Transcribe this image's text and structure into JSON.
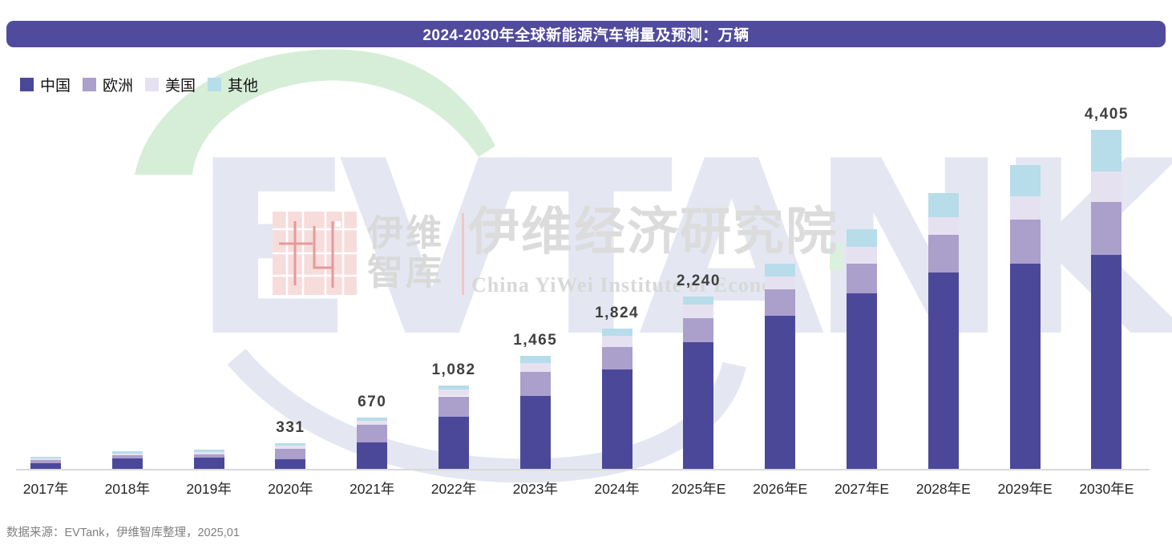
{
  "title": "2024-2030年全球新能源汽车销量及预测：万辆",
  "source_note": "数据来源：EVTank，伊维智库整理，2025,01",
  "colors": {
    "title_bar": "#514b9d",
    "china": "#4c4899",
    "europe": "#ab9fcc",
    "usa": "#e6e1f0",
    "other": "#b6dde9",
    "axis_line": "#d9d9d9",
    "value_label_text": "#3f3f3f",
    "source_text": "#7f7f7f",
    "watermark_green": "#d6eed8",
    "watermark_gray": "#dcdcdc",
    "watermark_blue_gray": "#e4e7f2",
    "logo_pink": "#f7dcdc",
    "logo_red": "#e59a9a"
  },
  "watermark": {
    "letters": "EVTANK",
    "logo_text": "伊维\n智库",
    "institute_cn": "伊维经济研究院",
    "institute_en": "China YiWei Institute of Econom"
  },
  "chart_data": {
    "type": "bar",
    "stacked": true,
    "unit": "万辆",
    "title": "2024-2030年全球新能源汽车销量及预测：万辆",
    "legend_position": "top-left",
    "y_axis_visible": false,
    "grid": false,
    "categories": [
      "2017年",
      "2018年",
      "2019年",
      "2020年",
      "2021年",
      "2022年",
      "2023年",
      "2024年",
      "2025年E",
      "2026年E",
      "2027年E",
      "2028年E",
      "2029年E",
      "2030年E"
    ],
    "series": [
      {
        "name": "中国",
        "key": "china",
        "color": "#4c4899",
        "values": [
          75,
          140,
          150,
          122,
          340,
          675,
          945,
          1292,
          1650,
          1990,
          2282,
          2552,
          2668,
          2785
        ]
      },
      {
        "name": "欧洲",
        "key": "europe",
        "color": "#ab9fcc",
        "values": [
          40,
          35,
          40,
          140,
          235,
          267,
          312,
          289,
          312,
          345,
          386,
          487,
          570,
          685
        ]
      },
      {
        "name": "美国",
        "key": "usa",
        "color": "#e6e1f0",
        "values": [
          20,
          25,
          30,
          38,
          53,
          90,
          115,
          146,
          174,
          167,
          216,
          233,
          306,
          393
        ]
      },
      {
        "name": "其他",
        "key": "other",
        "color": "#b6dde9",
        "values": [
          20,
          30,
          30,
          31,
          42,
          50,
          93,
          97,
          104,
          163,
          226,
          313,
          406,
          542
        ]
      }
    ],
    "totals": [
      155,
      230,
      250,
      331,
      670,
      1082,
      1465,
      1824,
      2240,
      2665,
      3110,
      3585,
      3950,
      4405
    ],
    "total_labels": [
      "",
      "",
      "",
      "331",
      "670",
      "1,082",
      "1,465",
      "1,824",
      "2,240",
      "",
      "",
      "",
      "",
      "4,405"
    ]
  }
}
